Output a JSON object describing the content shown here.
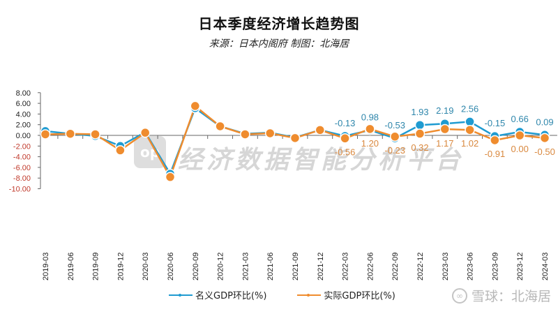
{
  "header": {
    "title": "日本季度经济增长趋势图",
    "subtitle": "来源：日本内阁府  制图：北海居"
  },
  "watermark": {
    "logo_text": "op",
    "text": "经济数据智能分析平台"
  },
  "credit": {
    "logo_icon": "snowball-logo-icon",
    "text": "雪球：北海居"
  },
  "legend": {
    "items": [
      {
        "label": "名义GDP环比(%)",
        "color": "#1f9bd1"
      },
      {
        "label": "实际GDP环比(%)",
        "color": "#ef8c2e"
      }
    ]
  },
  "colors": {
    "nominal": "#1f9bd1",
    "real": "#ef8c2e",
    "axis": "#666666",
    "negative_tick": "#c0392b"
  },
  "chart_data": {
    "type": "line",
    "title": "日本季度经济增长趋势图",
    "subtitle": "来源：日本内阁府  制图：北海居",
    "xlabel": "",
    "ylabel": "",
    "ylim": [
      -10,
      8
    ],
    "yticks": [
      "8.00",
      "6.00",
      "4.00",
      "2.00",
      "0.00",
      "-2.00",
      "-4.00",
      "-6.00",
      "-8.00",
      "-10.00"
    ],
    "grid": false,
    "legend_position": "bottom",
    "categories": [
      "2019-03",
      "2019-06",
      "2019-09",
      "2019-12",
      "2020-03",
      "2020-06",
      "2020-09",
      "2020-12",
      "2021-03",
      "2021-06",
      "2021-09",
      "2021-12",
      "2022-03",
      "2022-06",
      "2022-09",
      "2022-12",
      "2023-03",
      "2023-06",
      "2023-09",
      "2023-12",
      "2024-03"
    ],
    "series": [
      {
        "name": "名义GDP环比(%)",
        "values": [
          0.8,
          0.3,
          -0.1,
          -2.0,
          0.6,
          -7.2,
          5.1,
          1.7,
          0.3,
          0.5,
          -0.4,
          1.0,
          -0.13,
          0.98,
          -0.53,
          1.93,
          2.19,
          2.56,
          -0.15,
          0.66,
          0.09
        ],
        "labels": [
          "",
          "",
          "",
          "",
          "",
          "",
          "",
          "",
          "",
          "",
          "",
          "",
          "-0.13",
          "0.98",
          "-0.53",
          "1.93",
          "2.19",
          "2.56",
          "-0.15",
          "0.66",
          "0.09"
        ]
      },
      {
        "name": "实际GDP环比(%)",
        "values": [
          0.2,
          0.3,
          0.2,
          -2.8,
          0.5,
          -7.8,
          5.5,
          1.7,
          0.2,
          0.4,
          -0.5,
          1.0,
          -0.56,
          1.2,
          -0.23,
          0.32,
          1.17,
          1.02,
          -0.91,
          0.0,
          -0.5
        ],
        "labels": [
          "",
          "",
          "",
          "",
          "",
          "",
          "",
          "",
          "",
          "",
          "",
          "",
          "-0.56",
          "1.20",
          "-0.23",
          "0.32",
          "1.17",
          "1.02",
          "-0.91",
          "0.00",
          "-0.50"
        ]
      }
    ]
  }
}
